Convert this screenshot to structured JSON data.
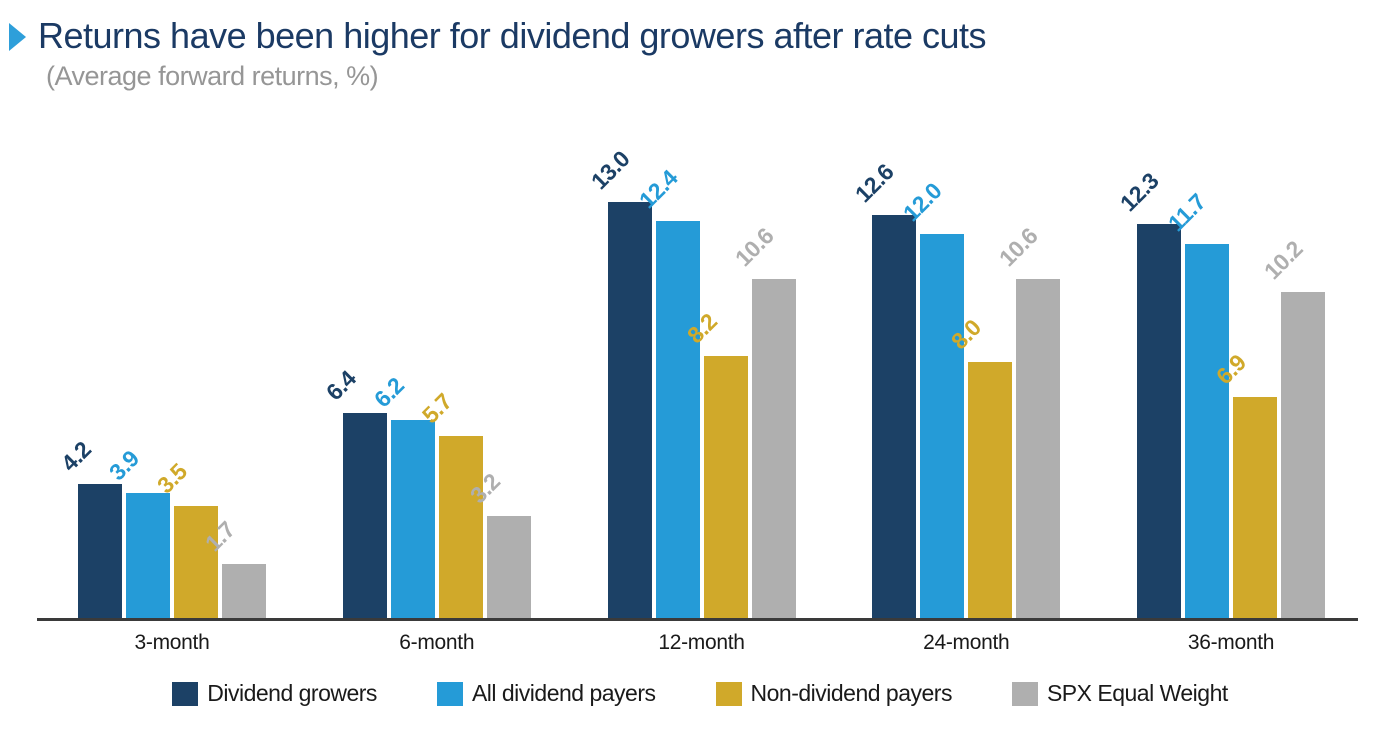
{
  "chart_data": {
    "type": "bar",
    "title": "Returns have been higher for dividend growers after rate cuts",
    "subtitle": "(Average forward returns, %)",
    "categories": [
      "3-month",
      "6-month",
      "12-month",
      "24-month",
      "36-month"
    ],
    "series": [
      {
        "name": "Dividend growers",
        "color": "#1c4166",
        "values": [
          4.2,
          6.4,
          13.0,
          12.6,
          12.3
        ]
      },
      {
        "name": "All dividend payers",
        "color": "#259bd7",
        "values": [
          3.9,
          6.2,
          12.4,
          12.0,
          11.7
        ]
      },
      {
        "name": "Non-dividend payers",
        "color": "#d0a92a",
        "values": [
          3.5,
          5.7,
          8.2,
          8.0,
          6.9
        ]
      },
      {
        "name": "SPX Equal Weight",
        "color": "#afafaf",
        "values": [
          1.7,
          3.2,
          10.6,
          10.6,
          10.2
        ]
      }
    ],
    "ylim": [
      0,
      13.9
    ],
    "grid": false,
    "data_labels": true,
    "data_label_decimals": 1,
    "legend_position": "bottom",
    "colors": {
      "title_text": "#1b3a64",
      "subtitle_text": "#969696",
      "title_marker": "#2e9fda",
      "axis_line": "#3a3a3a",
      "category_text": "#1a1a1a",
      "legend_text": "#1a1a1a"
    }
  }
}
